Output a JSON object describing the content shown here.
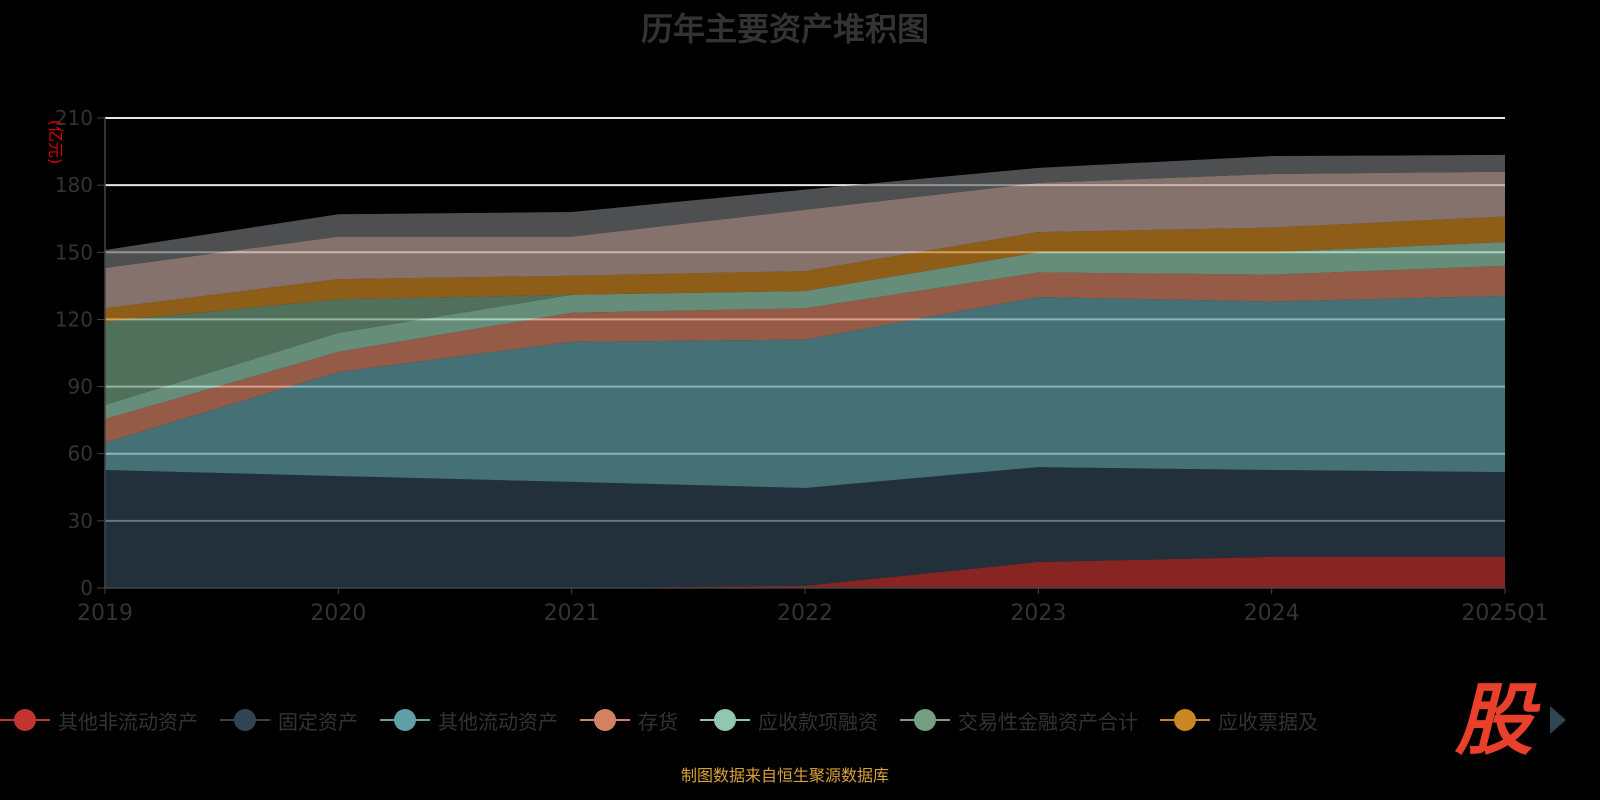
{
  "title": "历年主要资产堆积图",
  "source": "制图数据来自恒生聚源数据库",
  "logo_text": "股",
  "chart_data": {
    "type": "area",
    "stacked": true,
    "title": "历年主要资产堆积图",
    "ylabel": "(亿元)",
    "xlabel": "",
    "categories": [
      "2019",
      "2020",
      "2021",
      "2022",
      "2023",
      "2024",
      "2025Q1"
    ],
    "ylim": [
      0,
      210
    ],
    "yticks": [
      0,
      30,
      60,
      90,
      120,
      150,
      180,
      210
    ],
    "ytick_labels": [
      "0",
      "30",
      "60",
      "90",
      "120",
      "150",
      "180",
      "210"
    ],
    "grid": true,
    "legend_position": "bottom",
    "series": [
      {
        "name": "其他非流动资产",
        "color": "#c23531",
        "values": [
          0,
          0,
          0,
          1,
          11.6,
          13.9,
          13.9
        ]
      },
      {
        "name": "固定资产",
        "color": "#2f4554",
        "values": [
          52.7,
          50,
          47.4,
          43.7,
          42.4,
          38.8,
          37.9
        ]
      },
      {
        "name": "其他流动资产",
        "color": "#61a0a8",
        "values": [
          12.3,
          46.5,
          62.6,
          66.3,
          76,
          75.3,
          78.7
        ]
      },
      {
        "name": "存货",
        "color": "#d48265",
        "values": [
          10.5,
          9,
          13,
          14,
          11,
          12,
          13.5
        ]
      },
      {
        "name": "应收款项融资",
        "color": "#91c7ae",
        "values": [
          6.3,
          8.5,
          8,
          7.7,
          9,
          10,
          10.6
        ]
      },
      {
        "name": "交易性金融资产合计",
        "color": "#749f83",
        "values": [
          37.2,
          15,
          0,
          0,
          0,
          0,
          0
        ]
      },
      {
        "name": "应收票据及",
        "color": "#ca8622",
        "values": [
          6,
          9,
          8.5,
          8.9,
          9,
          11,
          11.4
        ]
      },
      {
        "name": null,
        "color": "#bda29a",
        "values": [
          18,
          19,
          17.5,
          27.4,
          22,
          24,
          20
        ]
      },
      {
        "name": null,
        "color": "#6e7074",
        "values": [
          8,
          10,
          11,
          9,
          6.7,
          8,
          7.5
        ]
      }
    ]
  }
}
